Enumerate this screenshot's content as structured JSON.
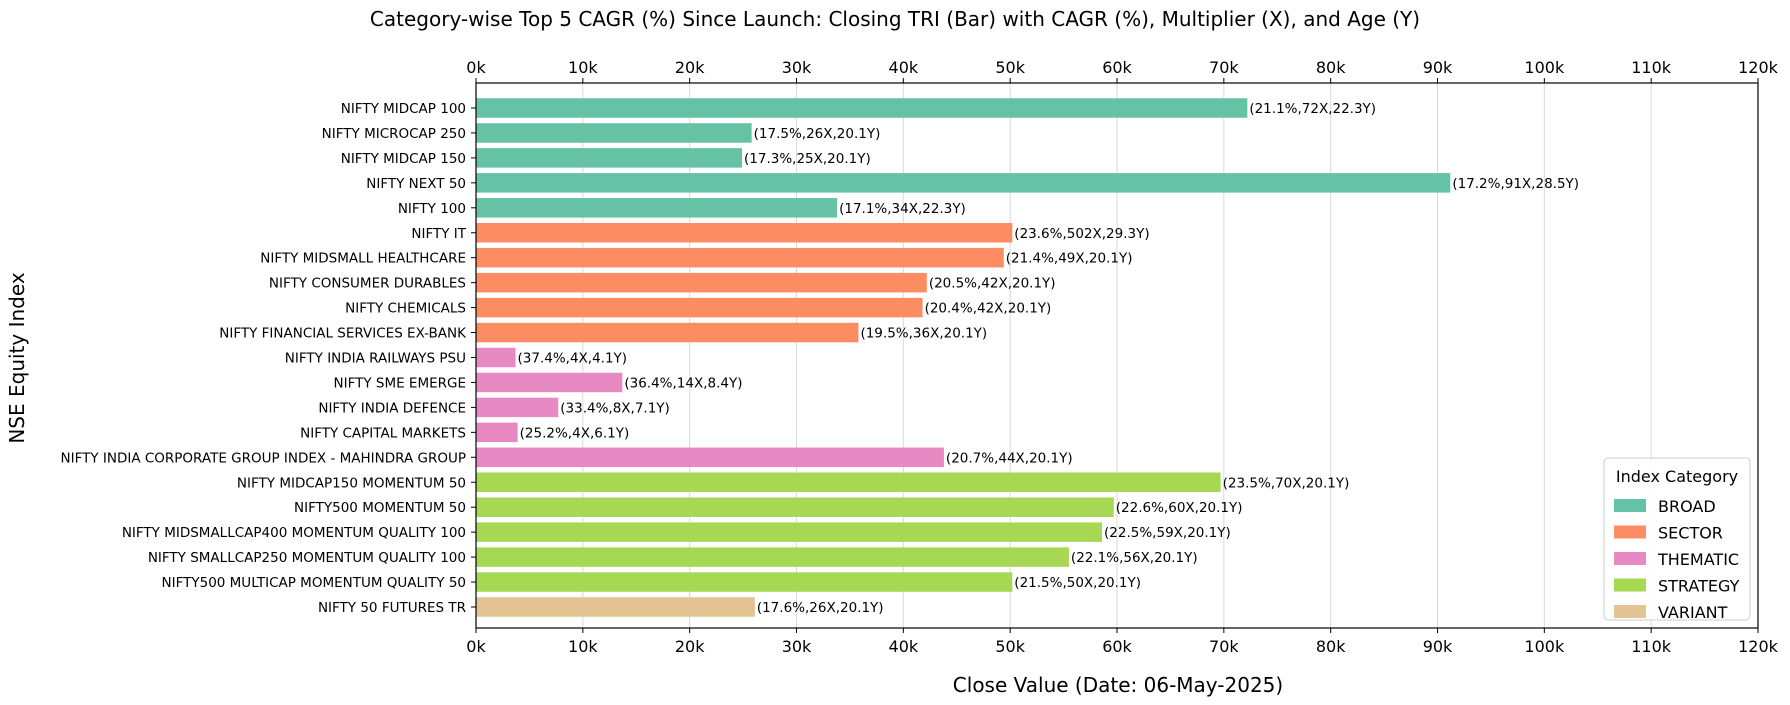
{
  "chart_data": {
    "type": "bar",
    "orientation": "horizontal",
    "title": "Category-wise Top 5 CAGR (%) Since Launch: Closing TRI (Bar) with CAGR (%), Multiplier (X), and Age (Y)",
    "xlabel": "Close Value (Date: 06-May-2025)",
    "ylabel": "NSE Equity Index",
    "xlim": [
      0,
      120000
    ],
    "x_ticks": [
      0,
      10000,
      20000,
      30000,
      40000,
      50000,
      60000,
      70000,
      80000,
      90000,
      100000,
      110000,
      120000
    ],
    "x_tick_labels": [
      "0k",
      "10k",
      "20k",
      "30k",
      "40k",
      "50k",
      "60k",
      "70k",
      "80k",
      "90k",
      "100k",
      "110k",
      "120k"
    ],
    "x_axis_position": "top and bottom",
    "grid": "vertical",
    "legend": {
      "title": "Index Category",
      "placement": "lower-right",
      "entries": [
        {
          "label": "BROAD",
          "color": "#66c2a5"
        },
        {
          "label": "SECTOR",
          "color": "#fc8d62"
        },
        {
          "label": "THEMATIC",
          "color": "#e78ac3"
        },
        {
          "label": "STRATEGY",
          "color": "#a6d854"
        },
        {
          "label": "VARIANT",
          "color": "#e5c494"
        }
      ]
    },
    "bars": [
      {
        "category": "NIFTY MIDCAP 100",
        "group": "BROAD",
        "value": 72200,
        "label": "(21.1%,72X,22.3Y)"
      },
      {
        "category": "NIFTY MICROCAP 250",
        "group": "BROAD",
        "value": 25800,
        "label": "(17.5%,26X,20.1Y)"
      },
      {
        "category": "NIFTY MIDCAP 150",
        "group": "BROAD",
        "value": 24900,
        "label": "(17.3%,25X,20.1Y)"
      },
      {
        "category": "NIFTY NEXT 50",
        "group": "BROAD",
        "value": 91200,
        "label": "(17.2%,91X,28.5Y)"
      },
      {
        "category": "NIFTY 100",
        "group": "BROAD",
        "value": 33800,
        "label": "(17.1%,34X,22.3Y)"
      },
      {
        "category": "NIFTY IT",
        "group": "SECTOR",
        "value": 50200,
        "label": "(23.6%,502X,29.3Y)"
      },
      {
        "category": "NIFTY MIDSMALL HEALTHCARE",
        "group": "SECTOR",
        "value": 49400,
        "label": "(21.4%,49X,20.1Y)"
      },
      {
        "category": "NIFTY CONSUMER DURABLES",
        "group": "SECTOR",
        "value": 42200,
        "label": "(20.5%,42X,20.1Y)"
      },
      {
        "category": "NIFTY CHEMICALS",
        "group": "SECTOR",
        "value": 41800,
        "label": "(20.4%,42X,20.1Y)"
      },
      {
        "category": "NIFTY FINANCIAL SERVICES EX-BANK",
        "group": "SECTOR",
        "value": 35800,
        "label": "(19.5%,36X,20.1Y)"
      },
      {
        "category": "NIFTY INDIA RAILWAYS PSU",
        "group": "THEMATIC",
        "value": 3700,
        "label": "(37.4%,4X,4.1Y)"
      },
      {
        "category": "NIFTY SME EMERGE",
        "group": "THEMATIC",
        "value": 13700,
        "label": "(36.4%,14X,8.4Y)"
      },
      {
        "category": "NIFTY INDIA DEFENCE",
        "group": "THEMATIC",
        "value": 7700,
        "label": "(33.4%,8X,7.1Y)"
      },
      {
        "category": "NIFTY CAPITAL MARKETS",
        "group": "THEMATIC",
        "value": 3900,
        "label": "(25.2%,4X,6.1Y)"
      },
      {
        "category": "NIFTY INDIA CORPORATE GROUP INDEX - MAHINDRA GROUP",
        "group": "THEMATIC",
        "value": 43800,
        "label": "(20.7%,44X,20.1Y)"
      },
      {
        "category": "NIFTY MIDCAP150 MOMENTUM 50",
        "group": "STRATEGY",
        "value": 69700,
        "label": "(23.5%,70X,20.1Y)"
      },
      {
        "category": "NIFTY500 MOMENTUM 50",
        "group": "STRATEGY",
        "value": 59700,
        "label": "(22.6%,60X,20.1Y)"
      },
      {
        "category": "NIFTY MIDSMALLCAP400 MOMENTUM QUALITY 100",
        "group": "STRATEGY",
        "value": 58600,
        "label": "(22.5%,59X,20.1Y)"
      },
      {
        "category": "NIFTY SMALLCAP250 MOMENTUM QUALITY 100",
        "group": "STRATEGY",
        "value": 55500,
        "label": "(22.1%,56X,20.1Y)"
      },
      {
        "category": "NIFTY500 MULTICAP MOMENTUM QUALITY 50",
        "group": "STRATEGY",
        "value": 50200,
        "label": "(21.5%,50X,20.1Y)"
      },
      {
        "category": "NIFTY 50 FUTURES TR",
        "group": "VARIANT",
        "value": 26100,
        "label": "(17.6%,26X,20.1Y)"
      }
    ]
  }
}
